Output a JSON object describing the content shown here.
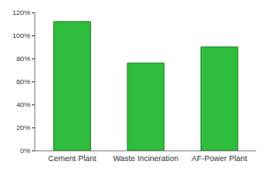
{
  "chart_data": {
    "type": "bar",
    "categories": [
      "Cement Plant",
      "Waste Incineration",
      "AF-Power Plant"
    ],
    "values": [
      112,
      76,
      90
    ],
    "color": "#2ebd3c",
    "ylim": [
      0,
      120
    ],
    "yticks": [
      {
        "value": 0,
        "label": "0%"
      },
      {
        "value": 20,
        "label": "20%"
      },
      {
        "value": 40,
        "label": "40%"
      },
      {
        "value": 60,
        "label": "60%"
      },
      {
        "value": 80,
        "label": "80%"
      },
      {
        "value": 100,
        "label": "100%"
      },
      {
        "value": 120,
        "label": "120%"
      }
    ],
    "grid": false
  }
}
